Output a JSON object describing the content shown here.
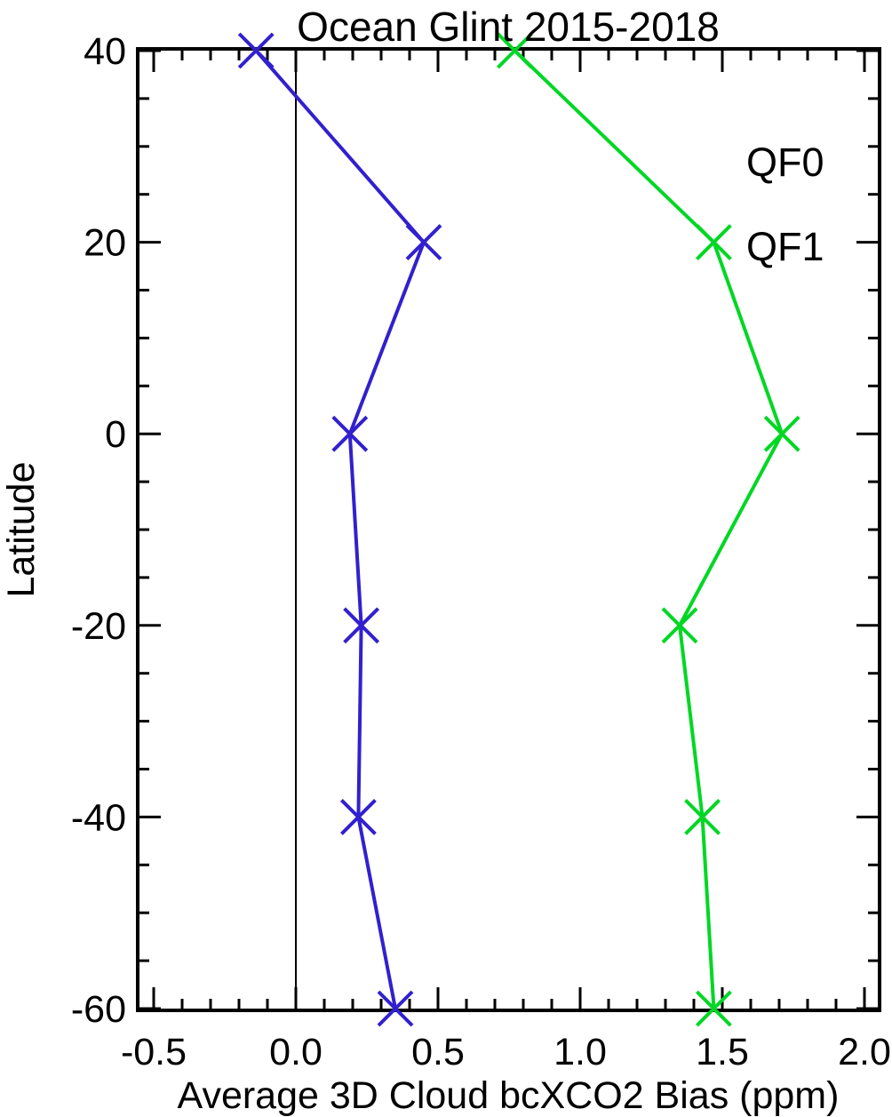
{
  "chart_data": {
    "type": "line",
    "title": "Ocean Glint 2015-2018",
    "xlabel": "Average 3D Cloud bcXCO2 Bias (ppm)",
    "ylabel": "Latitude",
    "xlim": [
      -0.56,
      2.05
    ],
    "ylim": [
      -60.2,
      40.2
    ],
    "x_ticks": [
      -0.5,
      0.0,
      0.5,
      1.0,
      1.5,
      2.0
    ],
    "x_tick_labels": [
      "-0.5",
      "0.0",
      "0.5",
      "1.0",
      "1.5",
      "2.0"
    ],
    "x_minor_step": 0.1,
    "y_ticks": [
      40,
      20,
      0,
      -20,
      -40,
      -60
    ],
    "y_tick_labels": [
      "40",
      "20",
      "0",
      "-20",
      "-40",
      "-60"
    ],
    "y_minor_step": 5,
    "grid": "off",
    "reference_line_x": 0.0,
    "marker": "x",
    "categories_latitude": [
      40,
      20,
      0,
      -20,
      -40,
      -60
    ],
    "series": [
      {
        "name": "QF0",
        "color": "#3220CE",
        "latitudes": [
          40,
          20,
          0,
          -20,
          -40,
          -60
        ],
        "values": [
          -0.14,
          0.45,
          0.19,
          0.23,
          0.22,
          0.35
        ]
      },
      {
        "name": "QF1",
        "color": "#00D724",
        "latitudes": [
          40,
          20,
          0,
          -20,
          -40,
          -60
        ],
        "values": [
          0.77,
          1.47,
          1.71,
          1.35,
          1.43,
          1.47
        ]
      }
    ],
    "legend": {
      "position": "inside-top-right",
      "entries": [
        {
          "label": "QF0",
          "color": "#3220CE",
          "x_data": 1.58,
          "lat_data": 28.4
        },
        {
          "label": "QF1",
          "color": "#00D724",
          "x_data": 1.58,
          "lat_data": 19.6
        }
      ]
    },
    "axis_color": "#000000",
    "background_color": "#ffffff"
  }
}
